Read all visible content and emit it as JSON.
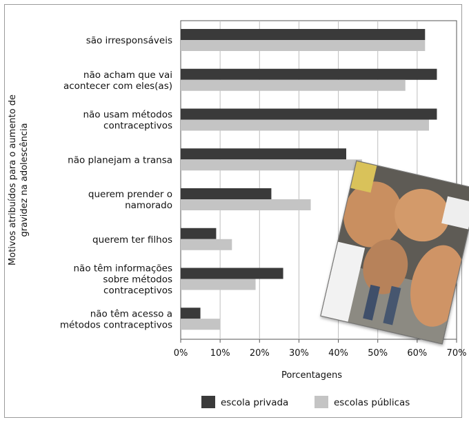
{
  "chart_data": {
    "type": "bar",
    "orientation": "horizontal",
    "categories": [
      [
        "são irresponsáveis"
      ],
      [
        "não acham que vai",
        "acontecer com eles(as)"
      ],
      [
        "não usam métodos",
        "contraceptivos"
      ],
      [
        "não planejam a transa"
      ],
      [
        "querem prender o",
        "namorado"
      ],
      [
        "querem ter filhos"
      ],
      [
        "não têm informações",
        "sobre métodos",
        "contraceptivos"
      ],
      [
        "não têm acesso a",
        "métodos contraceptivos"
      ]
    ],
    "series": [
      {
        "name": "escola privada",
        "color": "#3a3a3a",
        "values": [
          62,
          65,
          65,
          42,
          23,
          9,
          26,
          5
        ]
      },
      {
        "name": "escolas públicas",
        "color": "#c4c4c4",
        "values": [
          62,
          57,
          63,
          46,
          33,
          13,
          19,
          10
        ]
      }
    ],
    "xlim": [
      0,
      70
    ],
    "xticks": [
      "0%",
      "10%",
      "20%",
      "30%",
      "40%",
      "50%",
      "60%",
      "70%"
    ],
    "xlabel": "Porcentagens",
    "ylabel": [
      "Motivos atribuídos para o aumento de",
      "gravidez na adolescência"
    ],
    "grid": "vertical",
    "legend_position": "bottom"
  },
  "photo": {
    "description_icon": "pregnant-bellies-photo"
  }
}
